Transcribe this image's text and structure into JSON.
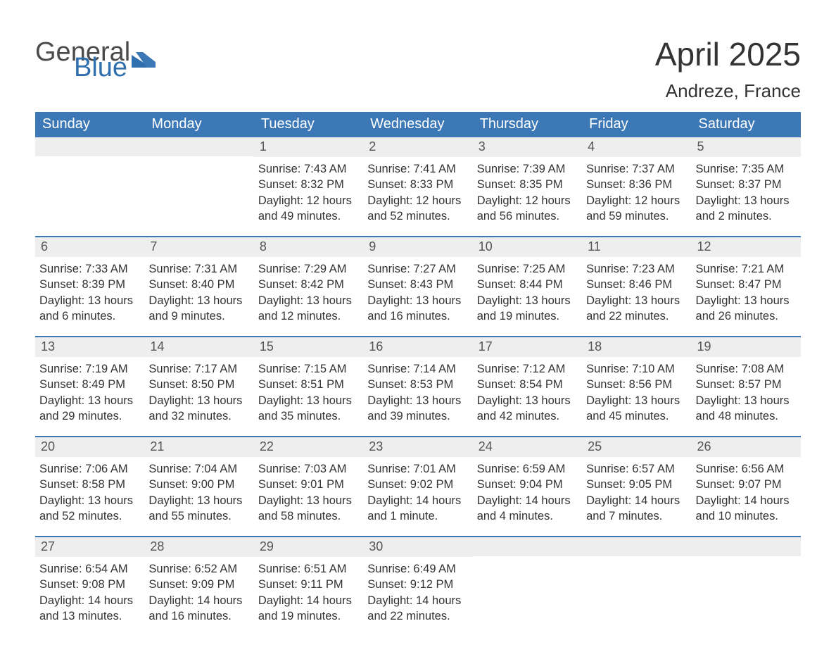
{
  "brand": {
    "line1": "General",
    "line2": "Blue"
  },
  "title": "April 2025",
  "location": "Andreze, France",
  "colors": {
    "header_bg": "#3b78b5",
    "header_text": "#ffffff",
    "num_strip_bg": "#eeeeee",
    "rule": "#3b78b5",
    "text": "#333333",
    "brand_accent": "#2f6fae"
  },
  "day_headers": [
    "Sunday",
    "Monday",
    "Tuesday",
    "Wednesday",
    "Thursday",
    "Friday",
    "Saturday"
  ],
  "weeks": [
    [
      {
        "day": "",
        "sunrise": "",
        "sunset": "",
        "daylight": ""
      },
      {
        "day": "",
        "sunrise": "",
        "sunset": "",
        "daylight": ""
      },
      {
        "day": "1",
        "sunrise": "Sunrise: 7:43 AM",
        "sunset": "Sunset: 8:32 PM",
        "daylight": "Daylight: 12 hours and 49 minutes."
      },
      {
        "day": "2",
        "sunrise": "Sunrise: 7:41 AM",
        "sunset": "Sunset: 8:33 PM",
        "daylight": "Daylight: 12 hours and 52 minutes."
      },
      {
        "day": "3",
        "sunrise": "Sunrise: 7:39 AM",
        "sunset": "Sunset: 8:35 PM",
        "daylight": "Daylight: 12 hours and 56 minutes."
      },
      {
        "day": "4",
        "sunrise": "Sunrise: 7:37 AM",
        "sunset": "Sunset: 8:36 PM",
        "daylight": "Daylight: 12 hours and 59 minutes."
      },
      {
        "day": "5",
        "sunrise": "Sunrise: 7:35 AM",
        "sunset": "Sunset: 8:37 PM",
        "daylight": "Daylight: 13 hours and 2 minutes."
      }
    ],
    [
      {
        "day": "6",
        "sunrise": "Sunrise: 7:33 AM",
        "sunset": "Sunset: 8:39 PM",
        "daylight": "Daylight: 13 hours and 6 minutes."
      },
      {
        "day": "7",
        "sunrise": "Sunrise: 7:31 AM",
        "sunset": "Sunset: 8:40 PM",
        "daylight": "Daylight: 13 hours and 9 minutes."
      },
      {
        "day": "8",
        "sunrise": "Sunrise: 7:29 AM",
        "sunset": "Sunset: 8:42 PM",
        "daylight": "Daylight: 13 hours and 12 minutes."
      },
      {
        "day": "9",
        "sunrise": "Sunrise: 7:27 AM",
        "sunset": "Sunset: 8:43 PM",
        "daylight": "Daylight: 13 hours and 16 minutes."
      },
      {
        "day": "10",
        "sunrise": "Sunrise: 7:25 AM",
        "sunset": "Sunset: 8:44 PM",
        "daylight": "Daylight: 13 hours and 19 minutes."
      },
      {
        "day": "11",
        "sunrise": "Sunrise: 7:23 AM",
        "sunset": "Sunset: 8:46 PM",
        "daylight": "Daylight: 13 hours and 22 minutes."
      },
      {
        "day": "12",
        "sunrise": "Sunrise: 7:21 AM",
        "sunset": "Sunset: 8:47 PM",
        "daylight": "Daylight: 13 hours and 26 minutes."
      }
    ],
    [
      {
        "day": "13",
        "sunrise": "Sunrise: 7:19 AM",
        "sunset": "Sunset: 8:49 PM",
        "daylight": "Daylight: 13 hours and 29 minutes."
      },
      {
        "day": "14",
        "sunrise": "Sunrise: 7:17 AM",
        "sunset": "Sunset: 8:50 PM",
        "daylight": "Daylight: 13 hours and 32 minutes."
      },
      {
        "day": "15",
        "sunrise": "Sunrise: 7:15 AM",
        "sunset": "Sunset: 8:51 PM",
        "daylight": "Daylight: 13 hours and 35 minutes."
      },
      {
        "day": "16",
        "sunrise": "Sunrise: 7:14 AM",
        "sunset": "Sunset: 8:53 PM",
        "daylight": "Daylight: 13 hours and 39 minutes."
      },
      {
        "day": "17",
        "sunrise": "Sunrise: 7:12 AM",
        "sunset": "Sunset: 8:54 PM",
        "daylight": "Daylight: 13 hours and 42 minutes."
      },
      {
        "day": "18",
        "sunrise": "Sunrise: 7:10 AM",
        "sunset": "Sunset: 8:56 PM",
        "daylight": "Daylight: 13 hours and 45 minutes."
      },
      {
        "day": "19",
        "sunrise": "Sunrise: 7:08 AM",
        "sunset": "Sunset: 8:57 PM",
        "daylight": "Daylight: 13 hours and 48 minutes."
      }
    ],
    [
      {
        "day": "20",
        "sunrise": "Sunrise: 7:06 AM",
        "sunset": "Sunset: 8:58 PM",
        "daylight": "Daylight: 13 hours and 52 minutes."
      },
      {
        "day": "21",
        "sunrise": "Sunrise: 7:04 AM",
        "sunset": "Sunset: 9:00 PM",
        "daylight": "Daylight: 13 hours and 55 minutes."
      },
      {
        "day": "22",
        "sunrise": "Sunrise: 7:03 AM",
        "sunset": "Sunset: 9:01 PM",
        "daylight": "Daylight: 13 hours and 58 minutes."
      },
      {
        "day": "23",
        "sunrise": "Sunrise: 7:01 AM",
        "sunset": "Sunset: 9:02 PM",
        "daylight": "Daylight: 14 hours and 1 minute."
      },
      {
        "day": "24",
        "sunrise": "Sunrise: 6:59 AM",
        "sunset": "Sunset: 9:04 PM",
        "daylight": "Daylight: 14 hours and 4 minutes."
      },
      {
        "day": "25",
        "sunrise": "Sunrise: 6:57 AM",
        "sunset": "Sunset: 9:05 PM",
        "daylight": "Daylight: 14 hours and 7 minutes."
      },
      {
        "day": "26",
        "sunrise": "Sunrise: 6:56 AM",
        "sunset": "Sunset: 9:07 PM",
        "daylight": "Daylight: 14 hours and 10 minutes."
      }
    ],
    [
      {
        "day": "27",
        "sunrise": "Sunrise: 6:54 AM",
        "sunset": "Sunset: 9:08 PM",
        "daylight": "Daylight: 14 hours and 13 minutes."
      },
      {
        "day": "28",
        "sunrise": "Sunrise: 6:52 AM",
        "sunset": "Sunset: 9:09 PM",
        "daylight": "Daylight: 14 hours and 16 minutes."
      },
      {
        "day": "29",
        "sunrise": "Sunrise: 6:51 AM",
        "sunset": "Sunset: 9:11 PM",
        "daylight": "Daylight: 14 hours and 19 minutes."
      },
      {
        "day": "30",
        "sunrise": "Sunrise: 6:49 AM",
        "sunset": "Sunset: 9:12 PM",
        "daylight": "Daylight: 14 hours and 22 minutes."
      },
      {
        "day": "",
        "sunrise": "",
        "sunset": "",
        "daylight": ""
      },
      {
        "day": "",
        "sunrise": "",
        "sunset": "",
        "daylight": ""
      },
      {
        "day": "",
        "sunrise": "",
        "sunset": "",
        "daylight": ""
      }
    ]
  ]
}
